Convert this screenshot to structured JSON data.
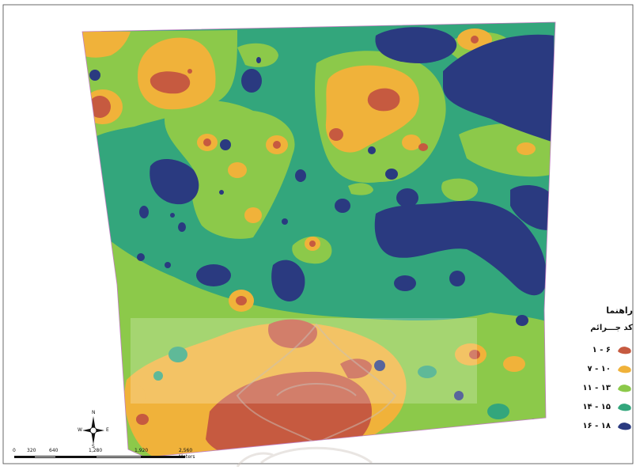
{
  "legend": {
    "title": "راهنما",
    "subtitle": "کد جـــرائم",
    "items": [
      {
        "label": "۶ - ۱",
        "color": "#c65a40"
      },
      {
        "label": "۱۰ - ۷",
        "color": "#f0b23a"
      },
      {
        "label": "۱۳ - ۱۱",
        "color": "#8cc94a"
      },
      {
        "label": "۱۵ - ۱۴",
        "color": "#33a67c"
      },
      {
        "label": "۱۸ - ۱۶",
        "color": "#2a3a80"
      }
    ]
  },
  "compass": {
    "n": "N",
    "s": "S",
    "e": "E",
    "w": "W"
  },
  "scale_bar": {
    "ticks": [
      "0",
      "320",
      "640",
      "1,280",
      "1,920",
      "2,560"
    ],
    "unit": "Meters"
  },
  "colors": {
    "class_1_6": "#c65a40",
    "class_7_10": "#f0b23a",
    "class_11_13": "#8cc94a",
    "class_14_15": "#33a67c",
    "class_16_18": "#2a3a80",
    "frame": "#444444",
    "boundary": "#c080c0"
  }
}
